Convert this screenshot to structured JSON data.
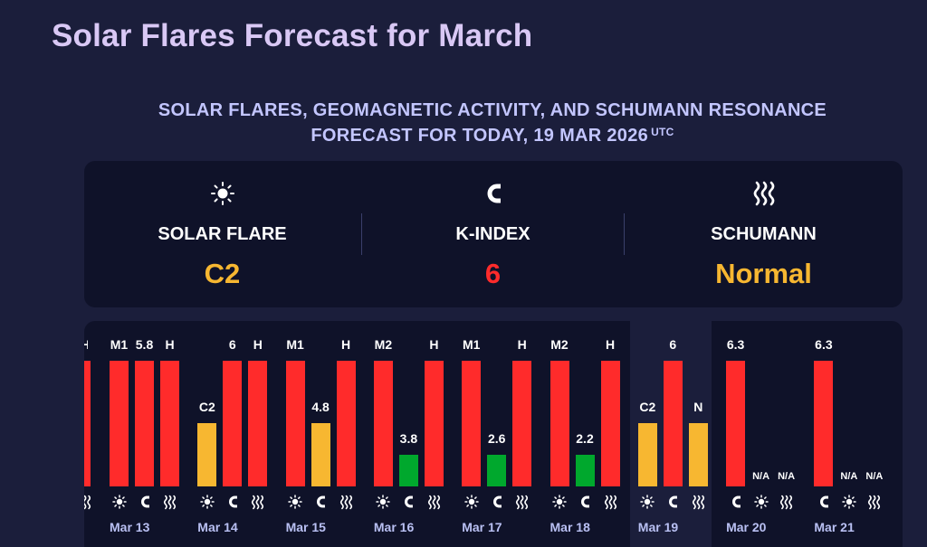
{
  "page": {
    "title": "Solar Flares Forecast for March",
    "subtitle_line1": "SOLAR FLARES, GEOMAGNETIC ACTIVITY, AND SCHUMANN RESONANCE",
    "subtitle_line2": "FORECAST FOR TODAY, 19 MAR 2026",
    "subtitle_sup": "UTC"
  },
  "summary": {
    "solar_flare": {
      "label": "SOLAR FLARE",
      "value": "C2",
      "color": "#f7b731",
      "icon": "sun-icon"
    },
    "k_index": {
      "label": "K-INDEX",
      "value": "6",
      "color": "#ff2b2b",
      "icon": "magnet-icon"
    },
    "schumann": {
      "label": "SCHUMANN",
      "value": "Normal",
      "color": "#f7b731",
      "icon": "waves-icon"
    }
  },
  "colors": {
    "red": "#ff2b2b",
    "yellow": "#f7b731",
    "green": "#00a82d",
    "day_label": "#b9c0f3"
  },
  "partial_left_label": "H",
  "days": [
    {
      "date": "Mar 13",
      "bars": [
        {
          "label": "M1",
          "level": 1.0,
          "color": "red"
        },
        {
          "label": "5.8",
          "level": 1.0,
          "color": "red"
        },
        {
          "label": "H",
          "level": 1.0,
          "color": "red"
        }
      ],
      "icons": [
        "sun-icon",
        "magnet-icon",
        "waves-icon"
      ]
    },
    {
      "date": "Mar 14",
      "bars": [
        {
          "label": "C2",
          "level": 0.5,
          "color": "yellow"
        },
        {
          "label": "6",
          "level": 1.0,
          "color": "red"
        },
        {
          "label": "H",
          "level": 1.0,
          "color": "red"
        }
      ],
      "icons": [
        "sun-icon",
        "magnet-icon",
        "waves-icon"
      ]
    },
    {
      "date": "Mar 15",
      "bars": [
        {
          "label": "M1",
          "level": 1.0,
          "color": "red"
        },
        {
          "label": "4.8",
          "level": 0.5,
          "color": "yellow"
        },
        {
          "label": "H",
          "level": 1.0,
          "color": "red"
        }
      ],
      "icons": [
        "sun-icon",
        "magnet-icon",
        "waves-icon"
      ]
    },
    {
      "date": "Mar 16",
      "bars": [
        {
          "label": "M2",
          "level": 1.0,
          "color": "red"
        },
        {
          "label": "3.8",
          "level": 0.25,
          "color": "green"
        },
        {
          "label": "H",
          "level": 1.0,
          "color": "red"
        }
      ],
      "icons": [
        "sun-icon",
        "magnet-icon",
        "waves-icon"
      ]
    },
    {
      "date": "Mar 17",
      "bars": [
        {
          "label": "M1",
          "level": 1.0,
          "color": "red"
        },
        {
          "label": "2.6",
          "level": 0.25,
          "color": "green"
        },
        {
          "label": "H",
          "level": 1.0,
          "color": "red"
        }
      ],
      "icons": [
        "sun-icon",
        "magnet-icon",
        "waves-icon"
      ]
    },
    {
      "date": "Mar 18",
      "bars": [
        {
          "label": "M2",
          "level": 1.0,
          "color": "red"
        },
        {
          "label": "2.2",
          "level": 0.25,
          "color": "green"
        },
        {
          "label": "H",
          "level": 1.0,
          "color": "red"
        }
      ],
      "icons": [
        "sun-icon",
        "magnet-icon",
        "waves-icon"
      ]
    },
    {
      "date": "Mar 19",
      "today": true,
      "bars": [
        {
          "label": "C2",
          "level": 0.5,
          "color": "yellow"
        },
        {
          "label": "6",
          "level": 1.0,
          "color": "red"
        },
        {
          "label": "N",
          "level": 0.5,
          "color": "yellow"
        }
      ],
      "icons": [
        "sun-icon",
        "magnet-icon",
        "waves-icon"
      ]
    },
    {
      "date": "Mar 20",
      "bars": [
        {
          "label": "6.3",
          "level": 1.0,
          "color": "red"
        },
        {
          "label": "N/A",
          "level": 0,
          "color": "none"
        },
        {
          "label": "N/A",
          "level": 0,
          "color": "none"
        }
      ],
      "icons": [
        "magnet-icon",
        "sun-icon",
        "waves-icon"
      ]
    },
    {
      "date": "Mar 21",
      "bars": [
        {
          "label": "6.3",
          "level": 1.0,
          "color": "red"
        },
        {
          "label": "N/A",
          "level": 0,
          "color": "none"
        },
        {
          "label": "N/A",
          "level": 0,
          "color": "none"
        }
      ],
      "icons": [
        "magnet-icon",
        "sun-icon",
        "waves-icon"
      ]
    }
  ]
}
